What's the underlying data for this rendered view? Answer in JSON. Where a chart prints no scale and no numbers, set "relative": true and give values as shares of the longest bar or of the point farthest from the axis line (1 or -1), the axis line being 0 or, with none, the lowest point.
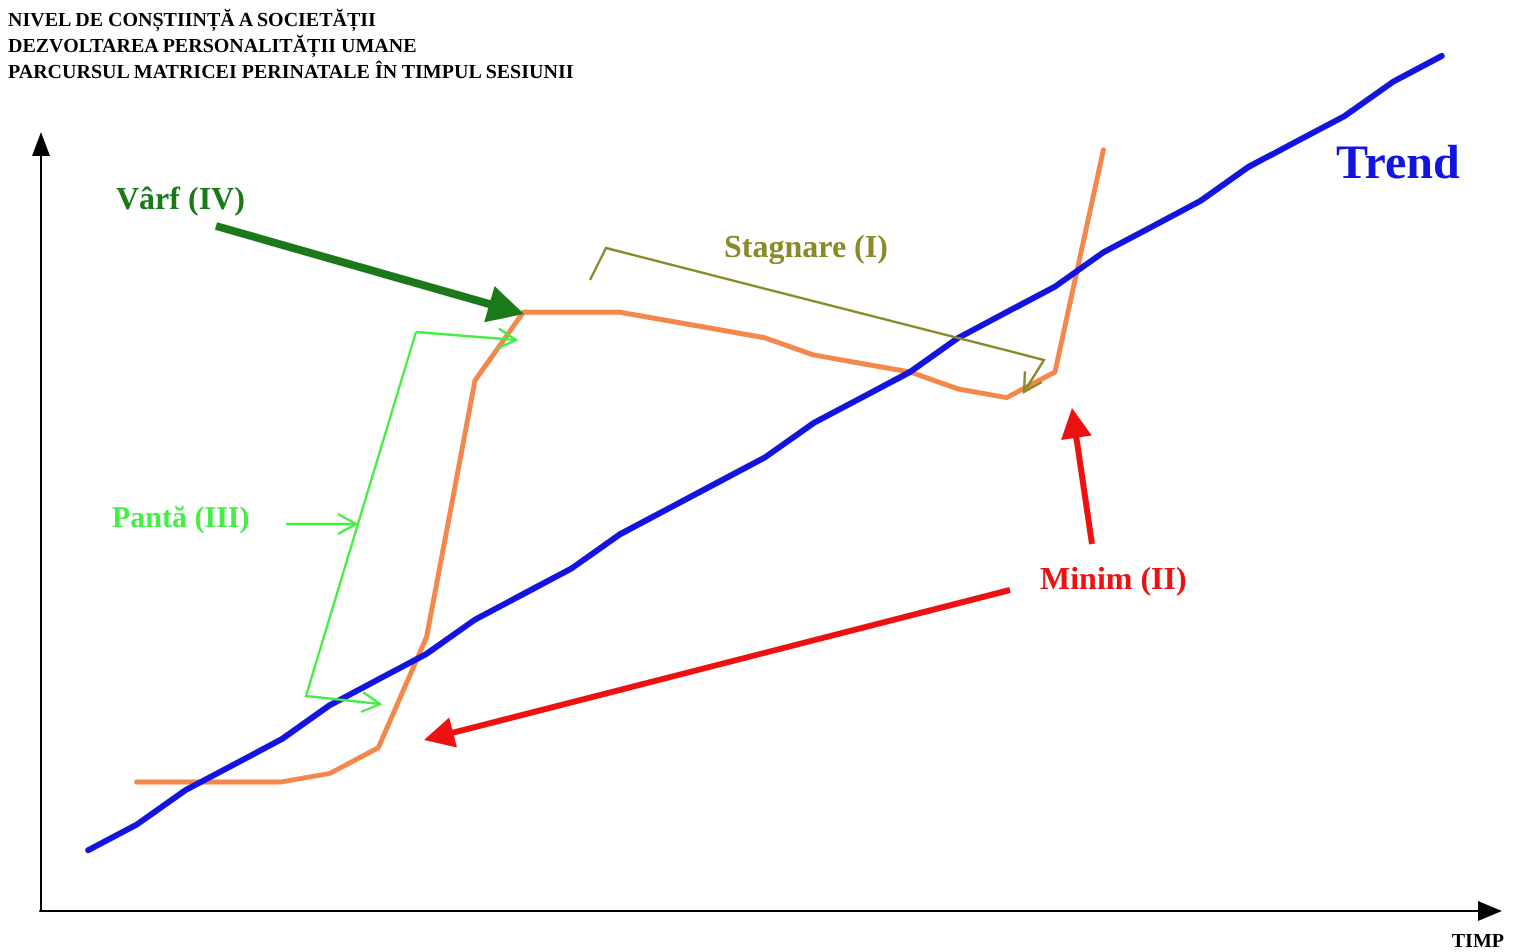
{
  "chart_data": {
    "type": "line",
    "relative": true,
    "ylabel": "NIVEL DE CONȘTIINȚĂ A SOCIETĂȚII\nDEZVOLTAREA PERSONALITĂȚII UMANE\nPARCURSUL MATRICEI PERINATALE ÎN TIMPUL SESIUNII",
    "xlabel": "TIMP",
    "categories": [
      null,
      null,
      null,
      null,
      null,
      null,
      null,
      null,
      null,
      null,
      null,
      null,
      null,
      null,
      null,
      null,
      null,
      null,
      null,
      null,
      null,
      null,
      null,
      null,
      null,
      null,
      null,
      null,
      null,
      null,
      null
    ],
    "marker": "none",
    "line_style": "solid",
    "series": [
      {
        "color": "#f4874b",
        "values": [
          null,
          null,
          0.15,
          0.15,
          0.15,
          0.15,
          0.16,
          0.19,
          0.32,
          0.62,
          0.7,
          0.7,
          0.7,
          0.69,
          0.68,
          0.67,
          0.65,
          0.64,
          0.63,
          0.61,
          0.6,
          0.63,
          0.89,
          null,
          null,
          null,
          null,
          null,
          null,
          null,
          null
        ]
      },
      {
        "name": "Trend",
        "color": "#1414e0",
        "values": [
          null,
          0.07,
          0.1,
          0.14,
          0.17,
          0.2,
          0.24,
          0.27,
          0.3,
          0.34,
          0.37,
          0.4,
          0.44,
          0.47,
          0.5,
          0.53,
          0.57,
          0.6,
          0.63,
          0.67,
          0.7,
          0.73,
          0.77,
          0.8,
          0.83,
          0.87,
          0.9,
          0.93,
          0.97,
          1.0,
          null
        ]
      }
    ],
    "annotations": [
      "Vârf (IV)",
      "Stagnare (I)",
      "Pantă (III)",
      "Minim (II)"
    ]
  }
}
